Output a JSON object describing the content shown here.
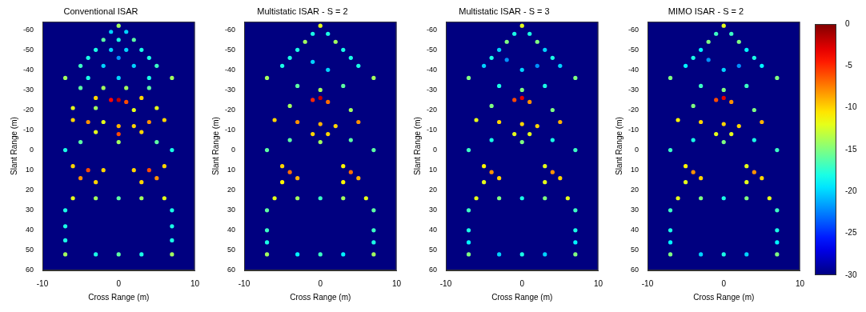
{
  "chart_data": [
    {
      "type": "heatmap",
      "title": "Conventional ISAR",
      "xlabel": "Cross Range (m)",
      "ylabel": "Slant Range (m)",
      "xlim": [
        -10,
        10
      ],
      "xticks": [
        -10,
        0,
        10
      ],
      "ylim": [
        60,
        -64
      ],
      "yticks": [
        -60,
        -50,
        -40,
        -30,
        -20,
        -10,
        0,
        10,
        20,
        30,
        40,
        50,
        60
      ],
      "grid": false,
      "marker": "circle",
      "cells": [
        [
          0,
          -62,
          -14
        ],
        [
          -1,
          -59,
          -20
        ],
        [
          1,
          -59,
          -20
        ],
        [
          -2,
          -55,
          -16
        ],
        [
          0,
          -55,
          -18
        ],
        [
          2,
          -55,
          -16
        ],
        [
          -3,
          -50,
          -18
        ],
        [
          -1,
          -50,
          -20
        ],
        [
          1,
          -50,
          -20
        ],
        [
          3,
          -50,
          -18
        ],
        [
          -4,
          -46,
          -18
        ],
        [
          0,
          -46,
          -22
        ],
        [
          4,
          -46,
          -18
        ],
        [
          -5,
          -42,
          -17
        ],
        [
          -2,
          -42,
          -20
        ],
        [
          2,
          -42,
          -20
        ],
        [
          5,
          -42,
          -17
        ],
        [
          -7,
          -36,
          -14
        ],
        [
          -4,
          -36,
          -18
        ],
        [
          0,
          -36,
          -20
        ],
        [
          4,
          -36,
          -18
        ],
        [
          7,
          -36,
          -14
        ],
        [
          -5,
          -31,
          -16
        ],
        [
          -2,
          -31,
          -14
        ],
        [
          1,
          -31,
          -14
        ],
        [
          4,
          -31,
          -16
        ],
        [
          -3,
          -26,
          -10
        ],
        [
          -1,
          -25,
          -4
        ],
        [
          0,
          -25,
          -2
        ],
        [
          1,
          -24,
          -6
        ],
        [
          3,
          -26,
          -10
        ],
        [
          -6,
          -21,
          -12
        ],
        [
          -3,
          -21,
          -14
        ],
        [
          2,
          -20,
          -12
        ],
        [
          5,
          -21,
          -12
        ],
        [
          -6,
          -15,
          -10
        ],
        [
          -4,
          -14,
          -8
        ],
        [
          -2,
          -14,
          -12
        ],
        [
          0,
          -12,
          -9
        ],
        [
          2,
          -12,
          -10
        ],
        [
          4,
          -14,
          -8
        ],
        [
          6,
          -15,
          -10
        ],
        [
          -3,
          -9,
          -12
        ],
        [
          0,
          -8,
          -6
        ],
        [
          3,
          -9,
          -10
        ],
        [
          -5,
          -4,
          -16
        ],
        [
          0,
          -4,
          -14
        ],
        [
          5,
          -4,
          -16
        ],
        [
          -7,
          0,
          -18
        ],
        [
          7,
          0,
          -18
        ],
        [
          -6,
          8,
          -10
        ],
        [
          -4,
          10,
          -6
        ],
        [
          -2,
          10,
          -10
        ],
        [
          -5,
          14,
          -8
        ],
        [
          -3,
          16,
          -10
        ],
        [
          2,
          10,
          -10
        ],
        [
          4,
          10,
          -6
        ],
        [
          6,
          8,
          -10
        ],
        [
          3,
          16,
          -10
        ],
        [
          5,
          14,
          -8
        ],
        [
          -6,
          24,
          -12
        ],
        [
          -3,
          24,
          -14
        ],
        [
          0,
          24,
          -16
        ],
        [
          3,
          24,
          -14
        ],
        [
          6,
          24,
          -12
        ],
        [
          -7,
          30,
          -18
        ],
        [
          7,
          30,
          -18
        ],
        [
          -7,
          38,
          -18
        ],
        [
          7,
          38,
          -18
        ],
        [
          -7,
          45,
          -18
        ],
        [
          7,
          45,
          -18
        ],
        [
          -7,
          52,
          -14
        ],
        [
          -3,
          52,
          -18
        ],
        [
          0,
          52,
          -16
        ],
        [
          3,
          52,
          -18
        ],
        [
          7,
          52,
          -14
        ]
      ]
    },
    {
      "type": "heatmap",
      "title": "Multistatic ISAR - S = 2",
      "xlabel": "Cross Range (m)",
      "ylabel": "Slant Range (m)",
      "xlim": [
        -10,
        10
      ],
      "xticks": [
        -10,
        0,
        10
      ],
      "ylim": [
        60,
        -64
      ],
      "yticks": [
        -60,
        -50,
        -40,
        -30,
        -20,
        -10,
        0,
        10,
        20,
        30,
        40,
        50,
        60
      ],
      "grid": false,
      "marker": "circle",
      "cells": [
        [
          0,
          -62,
          -12
        ],
        [
          -1,
          -58,
          -18
        ],
        [
          1,
          -58,
          -18
        ],
        [
          -2,
          -54,
          -14
        ],
        [
          2,
          -54,
          -14
        ],
        [
          -3,
          -50,
          -18
        ],
        [
          3,
          -50,
          -18
        ],
        [
          -4,
          -46,
          -18
        ],
        [
          4,
          -46,
          -18
        ],
        [
          -5,
          -42,
          -18
        ],
        [
          5,
          -42,
          -18
        ],
        [
          -1,
          -44,
          -20
        ],
        [
          1,
          -40,
          -20
        ],
        [
          -7,
          -36,
          -14
        ],
        [
          7,
          -36,
          -14
        ],
        [
          -3,
          -32,
          -16
        ],
        [
          0,
          -30,
          -14
        ],
        [
          3,
          -32,
          -16
        ],
        [
          -1,
          -25,
          -5
        ],
        [
          0,
          -26,
          -2
        ],
        [
          1,
          -24,
          -7
        ],
        [
          -4,
          -22,
          -14
        ],
        [
          4,
          -20,
          -14
        ],
        [
          -6,
          -15,
          -10
        ],
        [
          -3,
          -14,
          -8
        ],
        [
          0,
          -13,
          -9
        ],
        [
          2,
          -12,
          -10
        ],
        [
          5,
          -14,
          -8
        ],
        [
          -1,
          -8,
          -10
        ],
        [
          1,
          -8,
          -10
        ],
        [
          0,
          -4,
          -14
        ],
        [
          -4,
          -5,
          -16
        ],
        [
          4,
          -5,
          -16
        ],
        [
          -7,
          0,
          -16
        ],
        [
          7,
          0,
          -16
        ],
        [
          -5,
          8,
          -10
        ],
        [
          -4,
          11,
          -7
        ],
        [
          -3,
          14,
          -9
        ],
        [
          -5,
          16,
          -11
        ],
        [
          3,
          8,
          -11
        ],
        [
          4,
          11,
          -7
        ],
        [
          5,
          14,
          -9
        ],
        [
          3,
          16,
          -11
        ],
        [
          -6,
          24,
          -12
        ],
        [
          -3,
          24,
          -14
        ],
        [
          0,
          24,
          -17
        ],
        [
          3,
          24,
          -14
        ],
        [
          6,
          24,
          -12
        ],
        [
          -7,
          30,
          -16
        ],
        [
          7,
          30,
          -16
        ],
        [
          -7,
          40,
          -17
        ],
        [
          7,
          40,
          -17
        ],
        [
          -7,
          46,
          -18
        ],
        [
          7,
          46,
          -18
        ],
        [
          -7,
          52,
          -14
        ],
        [
          -3,
          52,
          -19
        ],
        [
          0,
          52,
          -17
        ],
        [
          3,
          52,
          -19
        ],
        [
          7,
          52,
          -14
        ]
      ]
    },
    {
      "type": "heatmap",
      "title": "Multistatic ISAR - S = 3",
      "xlabel": "Cross Range (m)",
      "ylabel": "Slant Range (m)",
      "xlim": [
        -10,
        10
      ],
      "xticks": [
        -10,
        0,
        10
      ],
      "ylim": [
        60,
        -64
      ],
      "yticks": [
        -60,
        -50,
        -40,
        -30,
        -20,
        -10,
        0,
        10,
        20,
        30,
        40,
        50,
        60
      ],
      "grid": false,
      "marker": "circle",
      "cells": [
        [
          0,
          -62,
          -12
        ],
        [
          -1,
          -58,
          -18
        ],
        [
          1,
          -58,
          -18
        ],
        [
          -2,
          -54,
          -15
        ],
        [
          2,
          -54,
          -15
        ],
        [
          -3,
          -50,
          -20
        ],
        [
          3,
          -50,
          -20
        ],
        [
          -4,
          -46,
          -18
        ],
        [
          4,
          -46,
          -18
        ],
        [
          -5,
          -42,
          -20
        ],
        [
          5,
          -42,
          -20
        ],
        [
          -2,
          -45,
          -22
        ],
        [
          0,
          -40,
          -20
        ],
        [
          2,
          -42,
          -22
        ],
        [
          -7,
          -36,
          -15
        ],
        [
          7,
          -36,
          -15
        ],
        [
          -3,
          -32,
          -18
        ],
        [
          0,
          -30,
          -15
        ],
        [
          3,
          -32,
          -18
        ],
        [
          -1,
          -25,
          -6
        ],
        [
          0,
          -26,
          -3
        ],
        [
          1,
          -24,
          -8
        ],
        [
          -4,
          -22,
          -15
        ],
        [
          4,
          -20,
          -15
        ],
        [
          -6,
          -15,
          -12
        ],
        [
          -3,
          -14,
          -10
        ],
        [
          0,
          -13,
          -10
        ],
        [
          2,
          -12,
          -10
        ],
        [
          5,
          -14,
          -9
        ],
        [
          -1,
          -8,
          -12
        ],
        [
          1,
          -8,
          -12
        ],
        [
          0,
          -4,
          -15
        ],
        [
          -4,
          -5,
          -18
        ],
        [
          4,
          -5,
          -18
        ],
        [
          -7,
          0,
          -17
        ],
        [
          7,
          0,
          -17
        ],
        [
          -5,
          8,
          -11
        ],
        [
          -4,
          11,
          -8
        ],
        [
          -3,
          14,
          -10
        ],
        [
          -5,
          16,
          -12
        ],
        [
          3,
          8,
          -12
        ],
        [
          4,
          11,
          -8
        ],
        [
          5,
          14,
          -10
        ],
        [
          3,
          16,
          -12
        ],
        [
          -6,
          24,
          -12
        ],
        [
          -3,
          24,
          -15
        ],
        [
          0,
          24,
          -18
        ],
        [
          3,
          24,
          -15
        ],
        [
          6,
          24,
          -12
        ],
        [
          -7,
          30,
          -17
        ],
        [
          7,
          30,
          -17
        ],
        [
          -7,
          40,
          -18
        ],
        [
          7,
          40,
          -18
        ],
        [
          -7,
          46,
          -19
        ],
        [
          7,
          46,
          -19
        ],
        [
          -7,
          52,
          -15
        ],
        [
          -3,
          52,
          -20
        ],
        [
          0,
          52,
          -18
        ],
        [
          3,
          52,
          -20
        ],
        [
          7,
          52,
          -15
        ]
      ]
    },
    {
      "type": "heatmap",
      "title": "MIMO ISAR - S = 2",
      "xlabel": "Cross Range (m)",
      "ylabel": "Slant Range (m)",
      "xlim": [
        -10,
        10
      ],
      "xticks": [
        -10,
        0,
        10
      ],
      "ylim": [
        60,
        -64
      ],
      "yticks": [
        -60,
        -50,
        -40,
        -30,
        -20,
        -10,
        0,
        10,
        20,
        30,
        40,
        50,
        60
      ],
      "grid": false,
      "marker": "circle",
      "cells": [
        [
          0,
          -62,
          -12
        ],
        [
          -1,
          -58,
          -17
        ],
        [
          1,
          -58,
          -17
        ],
        [
          -2,
          -54,
          -15
        ],
        [
          2,
          -54,
          -15
        ],
        [
          -3,
          -50,
          -19
        ],
        [
          3,
          -50,
          -19
        ],
        [
          -4,
          -46,
          -18
        ],
        [
          4,
          -46,
          -18
        ],
        [
          -5,
          -42,
          -19
        ],
        [
          5,
          -42,
          -19
        ],
        [
          -2,
          -45,
          -22
        ],
        [
          0,
          -40,
          -20
        ],
        [
          2,
          -42,
          -22
        ],
        [
          -7,
          -36,
          -15
        ],
        [
          7,
          -36,
          -15
        ],
        [
          -3,
          -32,
          -17
        ],
        [
          0,
          -30,
          -15
        ],
        [
          3,
          -32,
          -17
        ],
        [
          -1,
          -25,
          -6
        ],
        [
          0,
          -26,
          -3
        ],
        [
          1,
          -24,
          -8
        ],
        [
          -4,
          -22,
          -15
        ],
        [
          4,
          -20,
          -15
        ],
        [
          -6,
          -15,
          -11
        ],
        [
          -3,
          -14,
          -10
        ],
        [
          0,
          -13,
          -10
        ],
        [
          2,
          -12,
          -10
        ],
        [
          5,
          -14,
          -9
        ],
        [
          -1,
          -8,
          -12
        ],
        [
          1,
          -8,
          -12
        ],
        [
          0,
          -4,
          -15
        ],
        [
          -4,
          -5,
          -18
        ],
        [
          4,
          -5,
          -18
        ],
        [
          -7,
          0,
          -17
        ],
        [
          7,
          0,
          -17
        ],
        [
          -5,
          8,
          -11
        ],
        [
          -4,
          11,
          -8
        ],
        [
          -3,
          14,
          -10
        ],
        [
          -5,
          16,
          -12
        ],
        [
          3,
          8,
          -12
        ],
        [
          4,
          11,
          -8
        ],
        [
          5,
          14,
          -10
        ],
        [
          3,
          16,
          -12
        ],
        [
          -6,
          24,
          -12
        ],
        [
          -3,
          24,
          -15
        ],
        [
          0,
          24,
          -18
        ],
        [
          3,
          24,
          -15
        ],
        [
          6,
          24,
          -12
        ],
        [
          -7,
          30,
          -17
        ],
        [
          7,
          30,
          -17
        ],
        [
          -7,
          40,
          -18
        ],
        [
          7,
          40,
          -18
        ],
        [
          -7,
          46,
          -19
        ],
        [
          7,
          46,
          -19
        ],
        [
          -7,
          52,
          -15
        ],
        [
          -3,
          52,
          -20
        ],
        [
          0,
          52,
          -18
        ],
        [
          3,
          52,
          -20
        ],
        [
          7,
          52,
          -15
        ]
      ]
    }
  ],
  "colorbar": {
    "range": [
      -30,
      0
    ],
    "ticks": [
      0,
      -5,
      -10,
      -15,
      -20,
      -25,
      -30
    ]
  }
}
